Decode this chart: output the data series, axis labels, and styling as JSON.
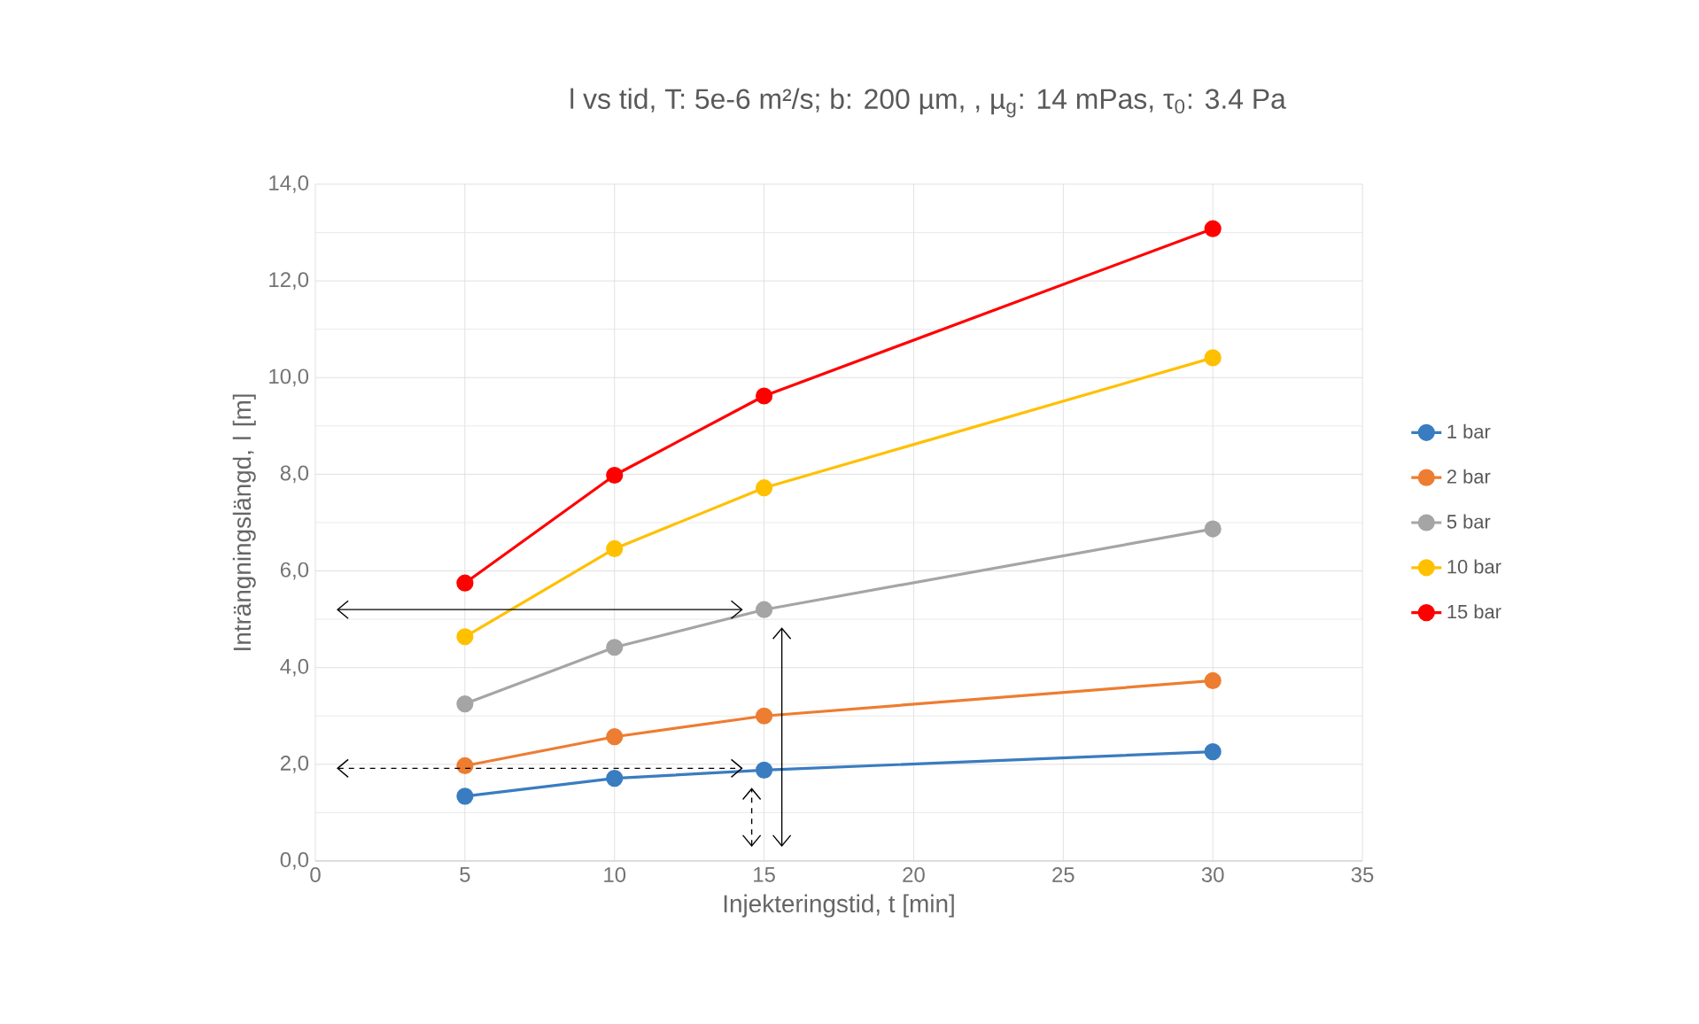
{
  "chart_data": {
    "type": "line",
    "title": "l vs tid, T: 5e-6 m²/s; b: 200 µm, , µ$_{g}$: 14 mPas, τ$_{0}$: 3.4 Pa",
    "xlabel": "Injekteringstid, t [min]",
    "ylabel": "Inträngningslängd, l [m]",
    "x": [
      5,
      10,
      15,
      30
    ],
    "series": [
      {
        "name": "1 bar",
        "color": "#3a7cc0",
        "values": [
          1.34,
          1.71,
          1.88,
          2.26
        ]
      },
      {
        "name": "2 bar",
        "color": "#ed7d31",
        "values": [
          1.97,
          2.57,
          3.0,
          3.73
        ]
      },
      {
        "name": "5 bar",
        "color": "#a5a5a5",
        "values": [
          3.25,
          4.42,
          5.2,
          6.87
        ]
      },
      {
        "name": "10 bar",
        "color": "#ffc000",
        "values": [
          4.64,
          6.46,
          7.72,
          10.41
        ]
      },
      {
        "name": "15 bar",
        "color": "#ff0000",
        "values": [
          5.75,
          7.98,
          9.62,
          13.08
        ]
      }
    ],
    "xlim": [
      0,
      35
    ],
    "xticks": [
      0,
      5,
      10,
      15,
      20,
      25,
      30,
      35
    ],
    "ylim": [
      0,
      14
    ],
    "yticks": [
      {
        "value": 0,
        "label": "0,0"
      },
      {
        "value": 2,
        "label": "2,0"
      },
      {
        "value": 4,
        "label": "4,0"
      },
      {
        "value": 6,
        "label": "6,0"
      },
      {
        "value": 8,
        "label": "8,0"
      },
      {
        "value": 10,
        "label": "10,0"
      },
      {
        "value": 12,
        "label": "12,0"
      },
      {
        "value": 14,
        "label": "14,0"
      }
    ],
    "grid": true,
    "legend": "right",
    "marker": "circle",
    "line_style": "solid"
  }
}
